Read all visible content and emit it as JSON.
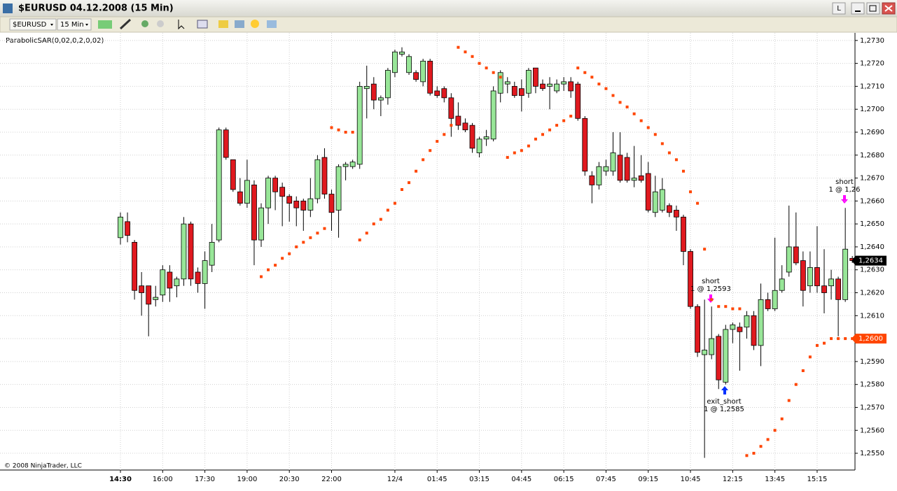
{
  "window": {
    "title": "$EURUSD  04.12.2008 (15 Min)",
    "link_button": "L"
  },
  "toolbar": {
    "instrument": "$EURUSD",
    "interval": "15 Min"
  },
  "chart_data": {
    "type": "candlestick",
    "indicator_label": "ParabolicSAR(0,02,0,2,0,02)",
    "copyright": "© 2008 NinjaTrader, LLC",
    "up_color": "#98e698",
    "down_color": "#e0191f",
    "categories": [
      "14:30",
      null,
      null,
      null,
      null,
      null,
      "16:00",
      null,
      null,
      null,
      null,
      null,
      "17:30",
      null,
      null,
      null,
      null,
      null,
      "19:00",
      null,
      null,
      null,
      null,
      null,
      "20:30",
      null,
      null,
      null,
      null,
      null,
      "22:00",
      null,
      null,
      null,
      null,
      null,
      null,
      null,
      null,
      "12/4",
      null,
      null,
      null,
      null,
      null,
      "01:45",
      null,
      null,
      null,
      null,
      null,
      "03:15",
      null,
      null,
      null,
      null,
      null,
      "04:45",
      null,
      null,
      null,
      null,
      null,
      "06:15",
      null,
      null,
      null,
      null,
      null,
      "07:45",
      null,
      null,
      null,
      null,
      null,
      "09:15",
      null,
      null,
      null,
      null,
      null,
      "10:45",
      null,
      null,
      null,
      null,
      null,
      "12:15",
      null,
      null,
      null,
      null,
      null,
      "13:45",
      null,
      null,
      null,
      null,
      null,
      "15:15",
      null,
      null,
      null,
      null,
      null
    ],
    "open": [
      1.2644,
      1.2651,
      1.2642,
      1.2623,
      1.2623,
      1.2617,
      1.2619,
      1.2629,
      1.2623,
      1.2626,
      1.265,
      1.2629,
      1.2624,
      1.2632,
      1.2643,
      1.2691,
      1.2678,
      1.2664,
      1.2659,
      1.2667,
      1.2643,
      1.2657,
      1.267,
      1.2666,
      1.2662,
      1.266,
      1.266,
      1.2656,
      1.2661,
      1.2679,
      1.2663,
      1.2656,
      1.2675,
      1.2675,
      1.2676,
      1.2709,
      1.2711,
      1.2704,
      1.2705,
      1.2716,
      1.2724,
      1.2716,
      1.2716,
      1.2712,
      1.2721,
      1.2708,
      1.2709,
      1.2705,
      1.2697,
      1.2694,
      1.2693,
      1.2681,
      1.2687,
      1.2687,
      1.2707,
      1.2711,
      1.271,
      1.2709,
      1.2707,
      1.2718,
      1.2711,
      1.271,
      1.2708,
      1.2711,
      1.2712,
      1.2711,
      1.2696,
      1.2671,
      1.2667,
      1.2673,
      1.2673,
      1.268,
      1.2679,
      1.2669,
      1.2671,
      1.2672,
      1.2655,
      1.2656,
      1.2658,
      1.2656,
      1.2653,
      1.2638,
      1.2614,
      1.2593,
      1.2593,
      1.2601,
      1.2581,
      1.2604,
      1.2605,
      1.2605,
      1.261,
      1.2597,
      1.2617,
      1.2613,
      1.2621,
      1.2629,
      1.264,
      1.2634,
      1.2623,
      1.2631,
      1.2623,
      1.2623,
      1.2626,
      1.2617,
      1.2635
    ],
    "high": [
      1.2655,
      1.2655,
      1.2643,
      1.2629,
      1.2623,
      1.2623,
      1.2632,
      1.2632,
      1.2627,
      1.2653,
      1.2651,
      1.2631,
      1.2638,
      1.265,
      1.2692,
      1.2692,
      1.2678,
      1.267,
      1.2678,
      1.2669,
      1.2659,
      1.2671,
      1.2671,
      1.2668,
      1.2663,
      1.2662,
      1.2661,
      1.267,
      1.268,
      1.2683,
      1.2665,
      1.2676,
      1.2677,
      1.2678,
      1.2712,
      1.2719,
      1.2714,
      1.2706,
      1.2718,
      1.2726,
      1.2727,
      1.2724,
      1.2717,
      1.2722,
      1.2722,
      1.271,
      1.271,
      1.2707,
      1.2703,
      1.2696,
      1.2694,
      1.2688,
      1.2691,
      1.271,
      1.2717,
      1.2714,
      1.2712,
      1.2713,
      1.2718,
      1.2718,
      1.2713,
      1.2714,
      1.2713,
      1.2714,
      1.2714,
      1.2712,
      1.2697,
      1.2673,
      1.2677,
      1.2678,
      1.269,
      1.269,
      1.2681,
      1.2684,
      1.268,
      1.2677,
      1.2671,
      1.267,
      1.2659,
      1.2658,
      1.2654,
      1.2639,
      1.2615,
      1.2617,
      1.2614,
      1.2602,
      1.2606,
      1.2607,
      1.2607,
      1.2612,
      1.2612,
      1.2624,
      1.262,
      1.2644,
      1.2632,
      1.2658,
      1.2655,
      1.2638,
      1.2638,
      1.2649,
      1.2639,
      1.263,
      1.2627,
      1.2657,
      1.2636
    ],
    "low": [
      1.2641,
      1.2642,
      1.2617,
      1.261,
      1.2601,
      1.2614,
      1.2616,
      1.2616,
      1.2618,
      1.2623,
      1.2623,
      1.262,
      1.2613,
      1.2629,
      1.2642,
      1.2678,
      1.2664,
      1.2658,
      1.2657,
      1.2632,
      1.264,
      1.265,
      1.2656,
      1.2649,
      1.2651,
      1.2649,
      1.2647,
      1.2653,
      1.2659,
      1.2661,
      1.2647,
      1.2644,
      1.2669,
      1.2674,
      1.2674,
      1.2696,
      1.27,
      1.2697,
      1.2702,
      1.2714,
      1.2723,
      1.2715,
      1.2712,
      1.271,
      1.2706,
      1.2705,
      1.2703,
      1.2688,
      1.2691,
      1.269,
      1.2681,
      1.2679,
      1.2684,
      1.2686,
      1.2703,
      1.2707,
      1.2705,
      1.2699,
      1.2705,
      1.2707,
      1.2708,
      1.27,
      1.2707,
      1.2708,
      1.2705,
      1.2695,
      1.2671,
      1.2659,
      1.2665,
      1.2671,
      1.2671,
      1.2668,
      1.2668,
      1.2666,
      1.2668,
      1.2655,
      1.2653,
      1.2655,
      1.2653,
      1.2647,
      1.2632,
      1.2613,
      1.2592,
      1.2548,
      1.2591,
      1.2578,
      1.258,
      1.2598,
      1.2586,
      1.26,
      1.2595,
      1.2588,
      1.2612,
      1.2612,
      1.262,
      1.2627,
      1.2632,
      1.2614,
      1.262,
      1.262,
      1.2611,
      1.2617,
      1.2601,
      1.2616,
      1.2633
    ],
    "close": [
      1.2653,
      1.2645,
      1.2621,
      1.262,
      1.2615,
      1.2618,
      1.263,
      1.2622,
      1.2626,
      1.265,
      1.2626,
      1.2624,
      1.2634,
      1.2642,
      1.2691,
      1.2679,
      1.2665,
      1.2659,
      1.2669,
      1.2643,
      1.2657,
      1.267,
      1.2664,
      1.2662,
      1.2659,
      1.2657,
      1.2656,
      1.2661,
      1.2678,
      1.2663,
      1.2655,
      1.2675,
      1.2676,
      1.2677,
      1.271,
      1.271,
      1.2704,
      1.2705,
      1.2717,
      1.2725,
      1.2725,
      1.2723,
      1.2713,
      1.2721,
      1.2707,
      1.2706,
      1.2705,
      1.2696,
      1.2693,
      1.2691,
      1.2683,
      1.2687,
      1.2688,
      1.2708,
      1.2716,
      1.2712,
      1.2706,
      1.2706,
      1.2717,
      1.271,
      1.2709,
      1.2711,
      1.2711,
      1.2712,
      1.2708,
      1.2696,
      1.2673,
      1.2667,
      1.2675,
      1.2675,
      1.2681,
      1.2669,
      1.2669,
      1.267,
      1.2669,
      1.2656,
      1.2664,
      1.2665,
      1.2655,
      1.2653,
      1.2638,
      1.2614,
      1.2594,
      1.2595,
      1.26,
      1.2582,
      1.2604,
      1.2606,
      1.2603,
      1.261,
      1.2597,
      1.2617,
      1.2613,
      1.2621,
      1.2626,
      1.264,
      1.2633,
      1.2621,
      1.2631,
      1.2623,
      1.262,
      1.2626,
      1.2617,
      1.2639,
      1.2634
    ],
    "last_price_label": "1,2634",
    "sar": {
      "color": "#ff4500",
      "last_label": "1,2600",
      "values": [
        null,
        null,
        null,
        null,
        null,
        null,
        null,
        null,
        null,
        null,
        null,
        null,
        null,
        null,
        null,
        null,
        null,
        null,
        null,
        null,
        1.2627,
        1.263,
        1.2632,
        1.2635,
        1.2637,
        1.264,
        1.2642,
        1.2644,
        1.2646,
        1.2648,
        1.2692,
        1.2691,
        1.269,
        1.269,
        1.2643,
        1.2646,
        1.265,
        1.2652,
        1.2656,
        1.2659,
        1.2665,
        1.2668,
        1.2673,
        1.2678,
        1.2682,
        1.2686,
        1.2689,
        1.2693,
        1.2727,
        1.2725,
        1.2723,
        1.272,
        1.2718,
        1.2716,
        1.2714,
        1.2679,
        1.2681,
        1.2682,
        1.2684,
        1.2687,
        1.2689,
        1.2691,
        1.2693,
        1.2695,
        1.2697,
        1.2718,
        1.2716,
        1.2714,
        1.2711,
        1.2709,
        1.2706,
        1.2703,
        1.2701,
        1.2698,
        1.2695,
        1.2692,
        1.2689,
        1.2685,
        1.2681,
        1.2678,
        1.2673,
        1.2664,
        1.2659,
        1.2639,
        1.2617,
        1.2614,
        1.2614,
        1.2613,
        1.2613,
        1.2549,
        1.255,
        1.2553,
        1.2556,
        1.256,
        1.2565,
        1.2573,
        1.258,
        1.2586,
        1.2592,
        1.2597,
        1.2598,
        1.26,
        1.26,
        1.26,
        1.26
      ]
    },
    "annotations": [
      [
        "short",
        "1 @ 1,2593"
      ],
      [
        "exit_short",
        "1 @ 1,2585"
      ],
      [
        "short",
        "1 @ 1,26"
      ]
    ],
    "ylim": [
      1.2543,
      1.2733
    ],
    "yticks": [
      {
        "value": 1.273,
        "label": "1,2730"
      },
      {
        "value": 1.272,
        "label": "1,2720"
      },
      {
        "value": 1.271,
        "label": "1,2710"
      },
      {
        "value": 1.27,
        "label": "1,2700"
      },
      {
        "value": 1.269,
        "label": "1,2690"
      },
      {
        "value": 1.268,
        "label": "1,2680"
      },
      {
        "value": 1.267,
        "label": "1,2670"
      },
      {
        "value": 1.266,
        "label": "1,2660"
      },
      {
        "value": 1.265,
        "label": "1,2650"
      },
      {
        "value": 1.264,
        "label": "1,2640"
      },
      {
        "value": 1.263,
        "label": "1,2630"
      },
      {
        "value": 1.262,
        "label": "1,2620"
      },
      {
        "value": 1.261,
        "label": "1,2610"
      },
      {
        "value": 1.26,
        "label": "1,2600"
      },
      {
        "value": 1.259,
        "label": "1,2590"
      },
      {
        "value": 1.258,
        "label": "1,2580"
      },
      {
        "value": 1.257,
        "label": "1,2570"
      },
      {
        "value": 1.256,
        "label": "1,2560"
      },
      {
        "value": 1.255,
        "label": "1,2550"
      }
    ],
    "grid": true
  }
}
